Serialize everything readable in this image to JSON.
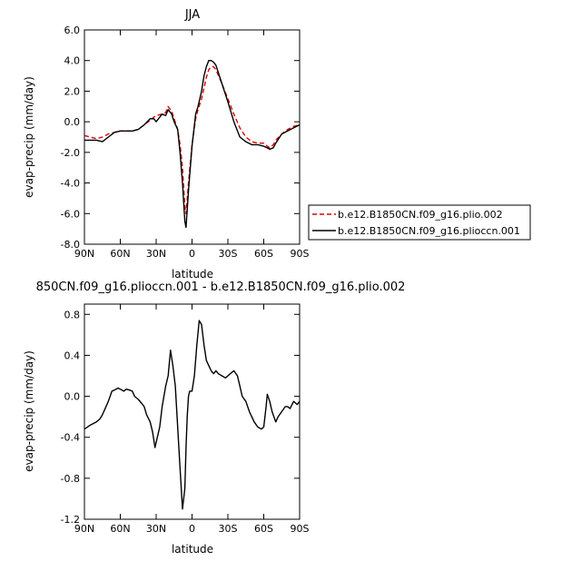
{
  "chart_data": [
    {
      "type": "line",
      "title": "JJA",
      "xlabel": "latitude",
      "ylabel": "evap-precip (mm/day)",
      "x_tick_labels": [
        "90N",
        "60N",
        "30N",
        "0",
        "30S",
        "60S",
        "90S"
      ],
      "y_tick_labels": [
        "-8.0",
        "-6.0",
        "-4.0",
        "-2.0",
        "0.0",
        "2.0",
        "4.0",
        "6.0"
      ],
      "xlim": [
        90,
        -90
      ],
      "ylim": [
        -8,
        6
      ],
      "grid": false,
      "legend_position": "right",
      "series": [
        {
          "name": "b.e12.B1850CN.f09_g16.plio.002",
          "color": "#e00000",
          "style": "dashed",
          "x": [
            90,
            80,
            75,
            70,
            65,
            60,
            50,
            45,
            40,
            35,
            32,
            30,
            25,
            22,
            20,
            17,
            15,
            12,
            10,
            8,
            6,
            5,
            3,
            0,
            -3,
            -5,
            -8,
            -10,
            -12,
            -14,
            -16,
            -18,
            -20,
            -25,
            -30,
            -35,
            -40,
            -45,
            -50,
            -55,
            -60,
            -63,
            -65,
            -68,
            -70,
            -75,
            -80,
            -85,
            -90
          ],
          "y": [
            -0.9,
            -1.1,
            -1.0,
            -0.8,
            -0.7,
            -0.6,
            -0.6,
            -0.5,
            -0.2,
            0.1,
            0.3,
            0.4,
            0.5,
            0.6,
            1.0,
            0.7,
            0.2,
            -0.5,
            -1.5,
            -3.0,
            -5.5,
            -6.0,
            -4.0,
            -1.5,
            0.2,
            0.8,
            1.5,
            2.2,
            2.9,
            3.4,
            3.6,
            3.6,
            3.4,
            2.5,
            1.5,
            0.5,
            -0.4,
            -1.0,
            -1.3,
            -1.4,
            -1.4,
            -1.6,
            -1.7,
            -1.5,
            -1.2,
            -0.8,
            -0.5,
            -0.3,
            -0.2
          ]
        },
        {
          "name": "b.e12.B1850CN.f09_g16.plioccn.001",
          "color": "#000000",
          "style": "solid",
          "x": [
            90,
            80,
            75,
            70,
            65,
            60,
            50,
            45,
            40,
            35,
            32,
            30,
            25,
            22,
            20,
            17,
            15,
            12,
            10,
            8,
            6,
            5,
            3,
            0,
            -3,
            -5,
            -8,
            -10,
            -12,
            -14,
            -16,
            -18,
            -20,
            -25,
            -30,
            -35,
            -40,
            -45,
            -50,
            -55,
            -60,
            -63,
            -65,
            -68,
            -70,
            -75,
            -80,
            -85,
            -90
          ],
          "y": [
            -1.2,
            -1.2,
            -1.3,
            -1.0,
            -0.7,
            -0.6,
            -0.6,
            -0.5,
            -0.2,
            0.2,
            0.2,
            0.0,
            0.5,
            0.4,
            0.8,
            0.5,
            0.0,
            -0.5,
            -2.0,
            -4.0,
            -6.5,
            -6.9,
            -4.5,
            -1.6,
            0.5,
            1.0,
            2.0,
            3.0,
            3.6,
            4.0,
            4.0,
            3.9,
            3.7,
            2.5,
            1.3,
            0.0,
            -1.0,
            -1.3,
            -1.5,
            -1.5,
            -1.6,
            -1.7,
            -1.8,
            -1.7,
            -1.4,
            -0.8,
            -0.6,
            -0.4,
            -0.2
          ]
        }
      ]
    },
    {
      "type": "line",
      "title": "850CN.f09_g16.plioccn.001 - b.e12.B1850CN.f09_g16.plio.002",
      "xlabel": "latitude",
      "ylabel": "evap-precip (mm/day)",
      "x_tick_labels": [
        "90N",
        "60N",
        "30N",
        "0",
        "30S",
        "60S",
        "90S"
      ],
      "y_tick_labels": [
        "-1.2",
        "-0.8",
        "-0.4",
        "0.0",
        "0.4",
        "0.8"
      ],
      "xlim": [
        90,
        -90
      ],
      "ylim": [
        -1.2,
        0.9
      ],
      "grid": false,
      "series": [
        {
          "color": "#000000",
          "style": "solid",
          "x": [
            90,
            85,
            80,
            77,
            75,
            70,
            67,
            65,
            62,
            60,
            57,
            55,
            52,
            50,
            48,
            45,
            42,
            40,
            38,
            35,
            33,
            31,
            29,
            27,
            25,
            22,
            20,
            18,
            16,
            14,
            12,
            10,
            8,
            6,
            5,
            4,
            3,
            2,
            0,
            -2,
            -4,
            -6,
            -8,
            -10,
            -12,
            -14,
            -16,
            -18,
            -20,
            -22,
            -25,
            -28,
            -30,
            -32,
            -35,
            -38,
            -40,
            -42,
            -45,
            -48,
            -50,
            -52,
            -55,
            -58,
            -60,
            -62,
            -63,
            -65,
            -67,
            -70,
            -72,
            -75,
            -78,
            -80,
            -82,
            -85,
            -88,
            -90
          ],
          "y": [
            -0.32,
            -0.28,
            -0.25,
            -0.22,
            -0.18,
            -0.05,
            0.05,
            0.06,
            0.08,
            0.07,
            0.05,
            0.07,
            0.06,
            0.05,
            0.0,
            -0.03,
            -0.07,
            -0.1,
            -0.18,
            -0.25,
            -0.35,
            -0.5,
            -0.4,
            -0.3,
            -0.1,
            0.1,
            0.2,
            0.45,
            0.3,
            0.1,
            -0.3,
            -0.7,
            -1.1,
            -0.9,
            -0.5,
            -0.2,
            0.0,
            0.05,
            0.05,
            0.2,
            0.5,
            0.74,
            0.7,
            0.5,
            0.35,
            0.3,
            0.25,
            0.22,
            0.25,
            0.22,
            0.2,
            0.18,
            0.2,
            0.22,
            0.25,
            0.2,
            0.1,
            0.0,
            -0.05,
            -0.15,
            -0.2,
            -0.25,
            -0.3,
            -0.32,
            -0.3,
            -0.1,
            0.02,
            -0.05,
            -0.15,
            -0.25,
            -0.2,
            -0.15,
            -0.1,
            -0.1,
            -0.12,
            -0.05,
            -0.08,
            -0.05
          ]
        }
      ]
    }
  ]
}
